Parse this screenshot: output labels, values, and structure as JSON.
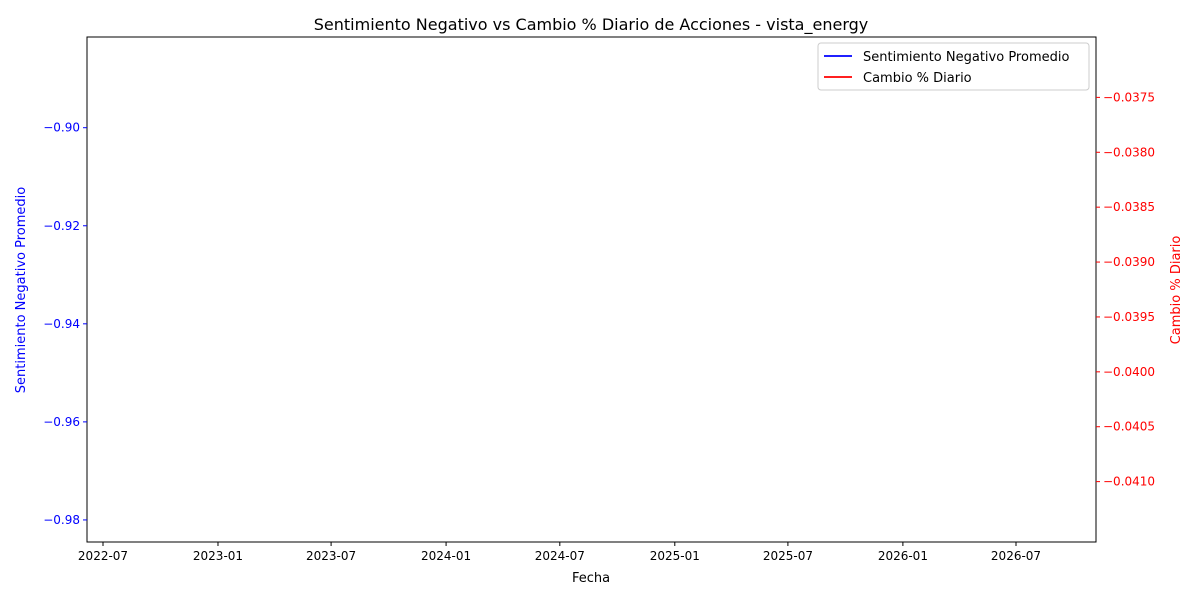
{
  "chart_data": {
    "type": "line",
    "title": "Sentimiento Negativo vs Cambio % Diario de Acciones - vista_energy",
    "xlabel": "Fecha",
    "ylabel_left": "Sentimiento Negativo Promedio",
    "ylabel_right": "Cambio % Diario",
    "x_ticks": [
      "2022-07",
      "2023-01",
      "2023-07",
      "2024-01",
      "2024-07",
      "2025-01",
      "2025-07",
      "2026-01",
      "2026-07"
    ],
    "y_left_ticks": [
      "−0.90",
      "−0.92",
      "−0.94",
      "−0.96",
      "−0.98"
    ],
    "y_right_ticks": [
      "−0.0375",
      "−0.0380",
      "−0.0385",
      "−0.0390",
      "−0.0395",
      "−0.0400",
      "−0.0405",
      "−0.0410"
    ],
    "ylim_left": [
      -0.9845,
      -0.8815
    ],
    "ylim_right": [
      -0.04155,
      -0.03695
    ],
    "grid": false,
    "legend_position": "top-right",
    "series": [
      {
        "name": "Sentimiento Negativo Promedio",
        "axis": "left",
        "color": "#0000ff",
        "x": [],
        "values": []
      },
      {
        "name": "Cambio % Diario",
        "axis": "right",
        "color": "#ff0000",
        "x": [],
        "values": []
      }
    ],
    "colors": {
      "left_axis": "#0000ff",
      "right_axis": "#ff0000",
      "frame": "#000000"
    }
  }
}
